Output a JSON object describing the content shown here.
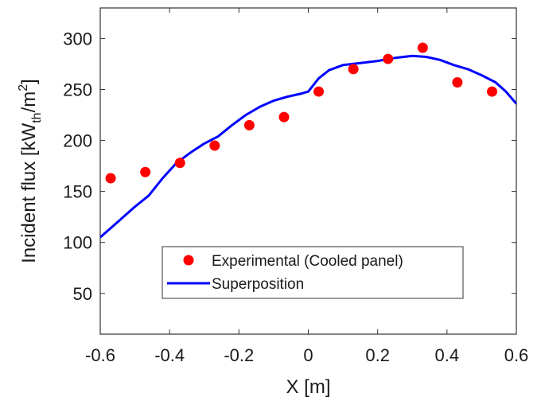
{
  "chart_data": {
    "type": "line",
    "xlabel": "X [m]",
    "ylabel": {
      "main": "Incident flux [kW",
      "sub": "th",
      "mid": "/m",
      "sup": "2",
      "end": "]"
    },
    "xlim": [
      -0.6,
      0.6
    ],
    "ylim": [
      10,
      330
    ],
    "xticks": [
      -0.6,
      -0.4,
      -0.2,
      0,
      0.2,
      0.4,
      0.6
    ],
    "xtick_labels": [
      "-0.6",
      "-0.4",
      "-0.2",
      "0",
      "0.2",
      "0.4",
      "0.6"
    ],
    "yticks": [
      50,
      100,
      150,
      200,
      250,
      300
    ],
    "ytick_labels": [
      "50",
      "100",
      "150",
      "200",
      "250",
      "300"
    ],
    "grid": false,
    "legend_position": "lower-center",
    "series": [
      {
        "name": "Experimental (Cooled panel)",
        "kind": "scatter",
        "color": "#ff0000",
        "points": [
          [
            -0.57,
            163
          ],
          [
            -0.47,
            169
          ],
          [
            -0.37,
            178
          ],
          [
            -0.27,
            195
          ],
          [
            -0.17,
            215
          ],
          [
            -0.07,
            223
          ],
          [
            0.03,
            248
          ],
          [
            0.13,
            270
          ],
          [
            0.23,
            280
          ],
          [
            0.33,
            291
          ],
          [
            0.43,
            257
          ],
          [
            0.53,
            248
          ]
        ]
      },
      {
        "name": "Superposition",
        "kind": "line",
        "color": "#0000ff",
        "points": [
          [
            -0.6,
            105
          ],
          [
            -0.55,
            120
          ],
          [
            -0.5,
            135
          ],
          [
            -0.46,
            146
          ],
          [
            -0.42,
            163
          ],
          [
            -0.38,
            178
          ],
          [
            -0.34,
            188
          ],
          [
            -0.3,
            197
          ],
          [
            -0.26,
            204
          ],
          [
            -0.22,
            215
          ],
          [
            -0.18,
            225
          ],
          [
            -0.14,
            233
          ],
          [
            -0.1,
            239
          ],
          [
            -0.06,
            243
          ],
          [
            -0.02,
            246
          ],
          [
            0.0,
            248
          ],
          [
            0.03,
            261
          ],
          [
            0.06,
            269
          ],
          [
            0.1,
            274
          ],
          [
            0.15,
            276
          ],
          [
            0.2,
            278
          ],
          [
            0.25,
            281
          ],
          [
            0.3,
            283
          ],
          [
            0.34,
            282
          ],
          [
            0.38,
            279
          ],
          [
            0.42,
            274
          ],
          [
            0.46,
            270
          ],
          [
            0.5,
            264
          ],
          [
            0.54,
            257
          ],
          [
            0.57,
            248
          ],
          [
            0.6,
            236
          ]
        ]
      }
    ]
  }
}
